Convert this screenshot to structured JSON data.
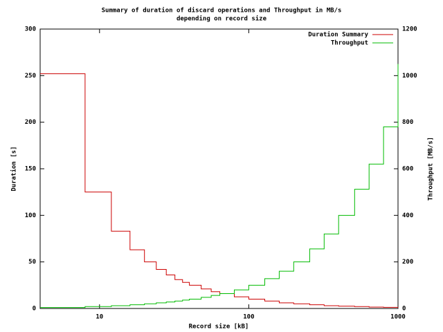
{
  "chart_data": {
    "type": "step",
    "title": "Summary of duration of discard operations and Throughput in MB/s",
    "subtitle": "depending on record size",
    "x_label": "Record size [kB]",
    "y_label": "Duration [s]",
    "y2_label": "Throughput [MB/s]",
    "x_log": true,
    "legend": "top-right",
    "x": [
      4,
      8,
      12,
      16,
      20,
      24,
      28,
      32,
      36,
      40,
      48,
      56,
      64,
      80,
      100,
      128,
      160,
      200,
      256,
      320,
      400,
      512,
      640,
      800,
      1000
    ],
    "series": [
      {
        "name": "Duration Summary",
        "color": "#cc0000",
        "values": [
          252,
          125,
          83,
          63,
          50,
          42,
          36,
          31,
          28,
          25,
          21,
          18,
          16,
          12.5,
          10,
          8,
          6,
          5,
          4,
          3,
          2.5,
          2,
          1.5,
          1.2,
          1
        ]
      },
      {
        "name": "Throughput",
        "color": "#00bb00",
        "axis": "y2",
        "values": [
          4,
          8,
          12,
          16,
          20,
          24,
          28,
          32,
          36,
          40,
          48,
          56,
          64,
          80,
          100,
          128,
          160,
          200,
          256,
          320,
          400,
          512,
          620,
          780,
          1050
        ]
      }
    ],
    "xlim": [
      4,
      1000
    ],
    "xticks": [
      10,
      100,
      1000
    ],
    "ylim": [
      0,
      300
    ],
    "yticks": [
      0,
      50,
      100,
      150,
      200,
      250,
      300
    ],
    "y2lim": [
      0,
      1200
    ],
    "y2ticks": [
      0,
      200,
      400,
      600,
      800,
      1000,
      1200
    ]
  }
}
